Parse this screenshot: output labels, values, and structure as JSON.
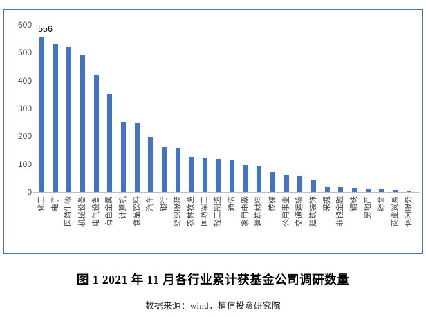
{
  "chart_data": {
    "type": "bar",
    "categories": [
      "化工",
      "电子",
      "医药生物",
      "机械设备",
      "电气设备",
      "有色金属",
      "计算机",
      "食品饮料",
      "汽车",
      "银行",
      "纺织服装",
      "农林牧渔",
      "国防军工",
      "轻工制造",
      "通信",
      "家用电器",
      "建筑材料",
      "传媒",
      "公用事业",
      "交通运输",
      "建筑装饰",
      "采掘",
      "非银金融",
      "钢铁",
      "房地产",
      "综合",
      "商业贸易",
      "休闲服务"
    ],
    "values": [
      556,
      531,
      520,
      490,
      418,
      352,
      252,
      248,
      195,
      160,
      156,
      125,
      122,
      119,
      114,
      96,
      91,
      71,
      63,
      56,
      45,
      18,
      17,
      15,
      13,
      10,
      7,
      3
    ],
    "ylim": [
      0,
      600
    ],
    "yticks": [
      0,
      100,
      200,
      300,
      400,
      500,
      600
    ],
    "annotations": [
      {
        "category": "化工",
        "text": "556"
      }
    ],
    "bar_color": "#4472C4",
    "frame_border_color": "#4472C4",
    "axis_line_color": "#BFBFBF",
    "tick_label_color": "#3F3F3F",
    "grid": false,
    "legend": "none",
    "xlabel": "",
    "ylabel": ""
  },
  "caption": {
    "title": "图 1 2021 年 11 月各行业累计获基金公司调研数量",
    "source": "数据来源：wind，植信投资研究院"
  }
}
